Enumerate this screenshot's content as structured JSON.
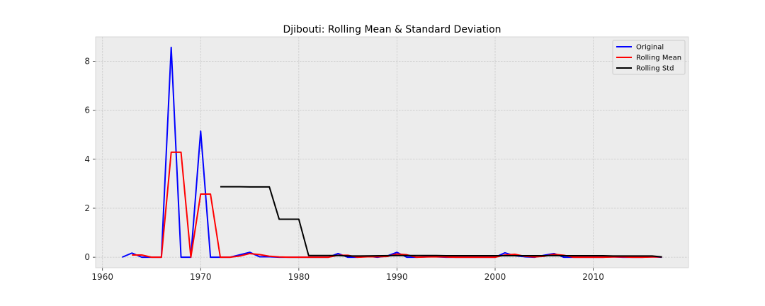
{
  "chart_data": {
    "type": "line",
    "title": "Djibouti: Rolling Mean & Standard Deviation",
    "xlabel": "",
    "ylabel": "",
    "xlim": [
      1959.3,
      2019.7
    ],
    "ylim": [
      -0.43,
      9.0
    ],
    "xticks": [
      1960,
      1970,
      1980,
      1990,
      2000,
      2010
    ],
    "yticks": [
      0,
      2,
      4,
      6,
      8
    ],
    "grid": true,
    "legend_position": "top-right",
    "series": [
      {
        "name": "Original",
        "color": "#0000ff",
        "x": [
          1962,
          1963,
          1964,
          1965,
          1966,
          1967,
          1968,
          1969,
          1970,
          1971,
          1972,
          1973,
          1974,
          1975,
          1976,
          1977,
          1978,
          1979,
          1980,
          1981,
          1982,
          1983,
          1984,
          1985,
          1986,
          1987,
          1988,
          1989,
          1990,
          1991,
          1992,
          1993,
          1994,
          1995,
          1996,
          1997,
          1998,
          1999,
          2000,
          2001,
          2002,
          2003,
          2004,
          2005,
          2006,
          2007,
          2008,
          2009,
          2010,
          2011,
          2012,
          2013,
          2014,
          2015,
          2016,
          2017
        ],
        "y": [
          0,
          0.17,
          0,
          0,
          0,
          8.57,
          0,
          0,
          5.15,
          0,
          0,
          0,
          0.1,
          0.2,
          0.02,
          0.02,
          0,
          0,
          0,
          0,
          0,
          0,
          0.15,
          0,
          0,
          0.04,
          0,
          0.05,
          0.2,
          0,
          0,
          0.02,
          0.02,
          0,
          0,
          0,
          0,
          0,
          0,
          0.18,
          0.06,
          0.02,
          0,
          0.08,
          0.15,
          0,
          0,
          0,
          0,
          0,
          0.02,
          0,
          0,
          0,
          0.02,
          0
        ]
      },
      {
        "name": "Rolling Mean",
        "color": "#ff0000",
        "x": [
          1963,
          1964,
          1965,
          1966,
          1967,
          1968,
          1969,
          1970,
          1971,
          1972,
          1973,
          1974,
          1975,
          1976,
          1977,
          1978,
          1979,
          1980,
          1981,
          1982,
          1983,
          1984,
          1985,
          1986,
          1987,
          1988,
          1989,
          1990,
          1991,
          1992,
          1993,
          1994,
          1995,
          1996,
          1997,
          1998,
          1999,
          2000,
          2001,
          2002,
          2003,
          2004,
          2005,
          2006,
          2007,
          2008,
          2009,
          2010,
          2011,
          2012,
          2013,
          2014,
          2015,
          2016,
          2017
        ],
        "y": [
          0.09,
          0.09,
          0,
          0,
          4.29,
          4.29,
          0,
          2.58,
          2.58,
          0,
          0,
          0.05,
          0.15,
          0.11,
          0.04,
          0.01,
          0,
          0,
          0,
          0,
          0,
          0.08,
          0.08,
          0,
          0.02,
          0.02,
          0.03,
          0.13,
          0.1,
          0,
          0.01,
          0.02,
          0.01,
          0,
          0,
          0,
          0,
          0,
          0.09,
          0.12,
          0.04,
          0.01,
          0.04,
          0.12,
          0.08,
          0,
          0,
          0,
          0,
          0.01,
          0.01,
          0,
          0,
          0.01,
          0.01
        ]
      },
      {
        "name": "Rolling Std",
        "color": "#000000",
        "x": [
          1972,
          1974,
          1975,
          1977,
          1978,
          1980,
          1981,
          1984,
          1985,
          1986,
          1990,
          1991,
          1994,
          1995,
          2000,
          2001,
          2005,
          2006,
          2007,
          2011,
          2012,
          2016,
          2017
        ],
        "y": [
          2.88,
          2.88,
          2.87,
          2.87,
          1.55,
          1.55,
          0.07,
          0.07,
          0.05,
          0.05,
          0.07,
          0.07,
          0.07,
          0.06,
          0.06,
          0.06,
          0.06,
          0.07,
          0.06,
          0.06,
          0.05,
          0.05,
          0.01
        ]
      }
    ]
  }
}
